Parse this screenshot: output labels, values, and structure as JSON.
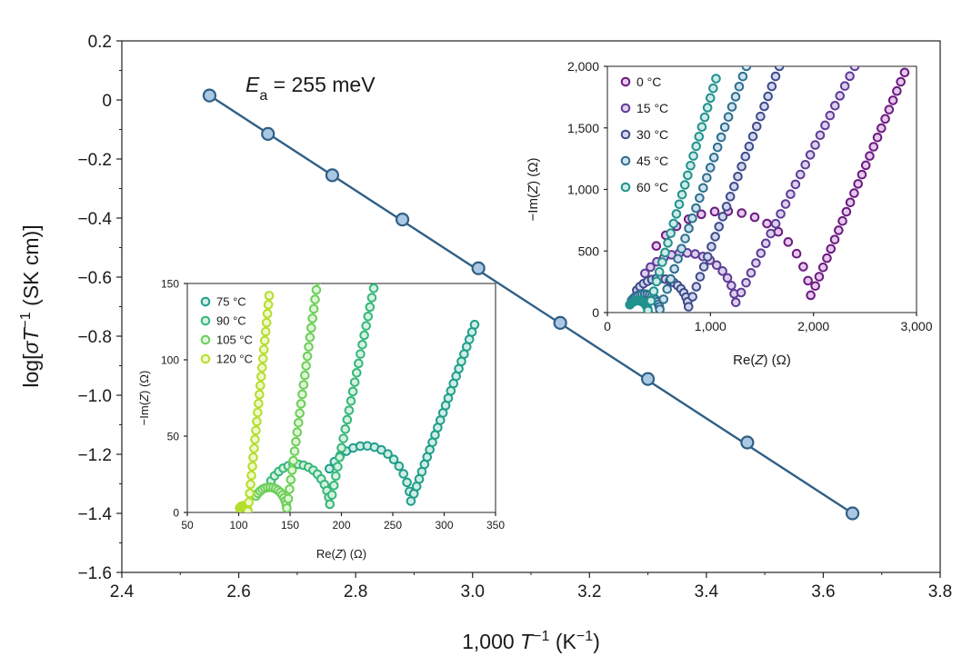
{
  "chart_data": [
    {
      "id": "main",
      "type": "scatter",
      "title": "",
      "annotation": {
        "italic": "E",
        "sub": "a",
        "rest": " = 255 meV"
      },
      "xlabel": {
        "pre": "1,000 ",
        "italic": "T",
        "sup": "−1",
        "mid": " (K",
        "sup2": "−1",
        "post": ")"
      },
      "ylabel": {
        "pre": "log[",
        "italic": "σT",
        "mid": " (SK cm",
        "sup": "−1",
        "post": ")]"
      },
      "xlim": [
        2.4,
        3.8
      ],
      "ylim": [
        -1.6,
        0.2
      ],
      "xticks": [
        2.4,
        2.6,
        2.8,
        3.0,
        3.2,
        3.4,
        3.6,
        3.8
      ],
      "xtick_labels": [
        "2.4",
        "2.6",
        "2.8",
        "3.0",
        "3.2",
        "3.4",
        "3.6",
        "3.8"
      ],
      "yticks": [
        0.2,
        0,
        -0.2,
        -0.4,
        -0.6,
        -0.8,
        -1.0,
        -1.2,
        -1.4,
        -1.6
      ],
      "ytick_labels": [
        "0.2",
        "0",
        "−0.2",
        "−0.4",
        "−0.6",
        "−0.8",
        "−1.0",
        "−1.2",
        "−1.4",
        "−1.6"
      ],
      "x": [
        2.55,
        2.65,
        2.76,
        2.88,
        3.01,
        3.15,
        3.3,
        3.47,
        3.65
      ],
      "y": [
        0.015,
        -0.115,
        -0.255,
        -0.405,
        -0.57,
        -0.755,
        -0.945,
        -1.16,
        -1.4
      ],
      "fit_line": {
        "x": [
          2.55,
          3.65
        ],
        "y": [
          0.015,
          -1.4
        ]
      },
      "line_color": "#2f5f86",
      "marker_fill": "#aac8e4"
    },
    {
      "id": "inset_high",
      "type": "scatter",
      "xlabel": {
        "pre": "Re(",
        "italic": "Z",
        "post": ") (Ω)"
      },
      "ylabel": {
        "pre": "−Im(",
        "italic": "Z",
        "post": ") (Ω)"
      },
      "xlim": [
        50,
        350
      ],
      "ylim": [
        0,
        150
      ],
      "xticks": [
        50,
        100,
        150,
        200,
        250,
        300,
        350
      ],
      "xtick_labels": [
        "50",
        "100",
        "150",
        "200",
        "250",
        "300",
        "350"
      ],
      "yticks": [
        0,
        50,
        100,
        150
      ],
      "ytick_labels": [
        "0",
        "50",
        "100",
        "150"
      ],
      "legend_position": "top-left",
      "series": [
        {
          "name": "75 °C",
          "color": "#1f9e8a",
          "fill": "#cfeee6",
          "r0": 178,
          "d": 90,
          "tail": 80,
          "tailMax": 123
        },
        {
          "name": "90 °C",
          "color": "#35b779",
          "fill": "#d6f2e1",
          "r0": 124,
          "d": 65,
          "tail": 45,
          "tailMax": 153
        },
        {
          "name": "105 °C",
          "color": "#6cce59",
          "fill": "#e1f6d8",
          "r0": 113,
          "d": 34,
          "tail": 30,
          "tailMax": 152
        },
        {
          "name": "120 °C",
          "color": "#b4de2c",
          "fill": "#f0f9cc",
          "r0": 100,
          "d": 9,
          "tail": 22,
          "tailMax": 142
        }
      ]
    },
    {
      "id": "inset_low",
      "type": "scatter",
      "xlabel": {
        "pre": "Re(",
        "italic": "Z",
        "post": ") (Ω)"
      },
      "ylabel": {
        "pre": "−Im(",
        "italic": "Z",
        "post": ") (Ω)"
      },
      "xlim": [
        0,
        3000
      ],
      "ylim": [
        0,
        2000
      ],
      "xticks": [
        0,
        1000,
        2000,
        3000
      ],
      "xtick_labels": [
        "0",
        "1,000",
        "2,000",
        "3,000"
      ],
      "yticks": [
        0,
        500,
        1000,
        1500,
        2000
      ],
      "ytick_labels": [
        "0",
        "500",
        "1,000",
        "1,500",
        "2,000"
      ],
      "legend_position": "top-left",
      "series": [
        {
          "name": "0 °C",
          "color": "#6b1a7f",
          "fill": "#e6c9ee",
          "r0": 280,
          "d": 1700,
          "tail": 1000,
          "tailMax": 1950
        },
        {
          "name": "15 °C",
          "color": "#5e3c96",
          "fill": "#ddd0ef",
          "r0": 250,
          "d": 1000,
          "tail": 1200,
          "tailMax": 2000
        },
        {
          "name": "30 °C",
          "color": "#3e4a89",
          "fill": "#d1d6ef",
          "r0": 220,
          "d": 570,
          "tail": 900,
          "tailMax": 2000
        },
        {
          "name": "45 °C",
          "color": "#2d6e8e",
          "fill": "#cfe2ee",
          "r0": 200,
          "d": 310,
          "tail": 850,
          "tailMax": 2000
        },
        {
          "name": "60 °C",
          "color": "#21918c",
          "fill": "#cdece9",
          "r0": 195,
          "d": 200,
          "tail": 700,
          "tailMax": 1900
        }
      ]
    }
  ]
}
